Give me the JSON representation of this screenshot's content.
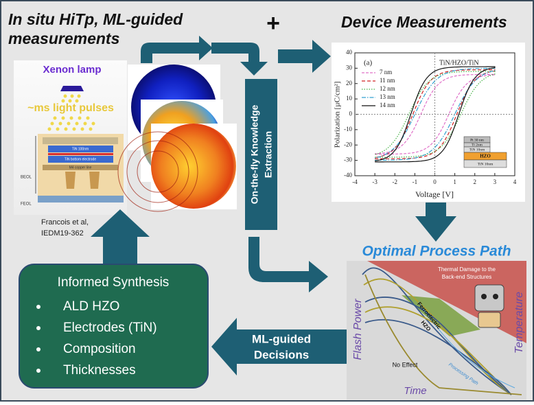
{
  "header": {
    "title_lines": [
      "In situ HiTp, ML-guided",
      "measurements"
    ],
    "plus": "+",
    "device_title": "Device Measurements"
  },
  "setup": {
    "lamp": "Xenon lamp",
    "pulses": "~ms light pulses",
    "layers": [
      "TiN 100nm",
      "TiN bottom electrode",
      "M4 copper line"
    ],
    "beol": "BEOL",
    "feol": "FEOL",
    "citation": [
      "Francois et al,",
      "IEDM19-362"
    ]
  },
  "extraction": {
    "label_lines": [
      "On-the-fly Knowledge",
      "Extraction"
    ]
  },
  "pe_plot": {
    "panel": "(a)",
    "title": "TiN/HZO/TiN",
    "y_label": "Polarization [µC/cm²]",
    "x_label": "Voltage [V]",
    "xticks": [
      -4,
      -3,
      -2,
      -1,
      0,
      1,
      2,
      3,
      4
    ],
    "yticks": [
      -40,
      -30,
      -20,
      -10,
      0,
      10,
      20,
      30,
      40
    ],
    "legend": [
      "7 nm",
      "11 nm",
      "12 nm",
      "13 nm",
      "14 nm"
    ],
    "stack": [
      "Pt 30 nm",
      "Ti 2nm",
      "TiN 10nm",
      "HZO",
      "TiN 10nm"
    ]
  },
  "process": {
    "title": "Optimal Process Path",
    "damage": [
      "Thermal Damage to the",
      "Back-end Structures"
    ],
    "ferro": [
      "Ferroelectric",
      "HZO"
    ],
    "no_effect": "No Effect",
    "path": "Processing Path",
    "y_left": "Flash Power",
    "y_right": "Temperature",
    "x_label": "Time"
  },
  "synthesis": {
    "title": "Informed Synthesis",
    "items": [
      "ALD HZO",
      "Electrodes (TiN)",
      "Composition",
      "Thicknesses"
    ]
  },
  "decisions": {
    "lines": [
      "ML-guided",
      "Decisions"
    ]
  }
}
